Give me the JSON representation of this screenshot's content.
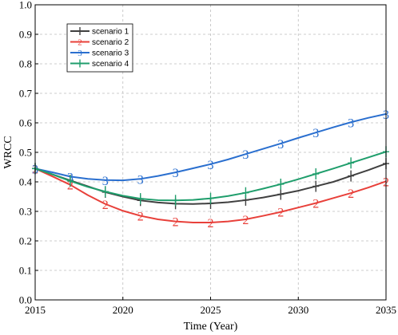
{
  "chart_data": {
    "type": "line",
    "title": "",
    "xlabel": "Time (Year)",
    "ylabel": "WRCC",
    "xlim": [
      2015,
      2035
    ],
    "ylim": [
      0,
      1.0
    ],
    "x_ticks": [
      2015,
      2020,
      2025,
      2030,
      2035
    ],
    "x_tick_labels": [
      "2015",
      "2020",
      "2025",
      "2030",
      "2035"
    ],
    "y_ticks": [
      0,
      0.1,
      0.2,
      0.3,
      0.4,
      0.5,
      0.6,
      0.7,
      0.8,
      0.9,
      1.0
    ],
    "y_tick_labels": [
      "0.0",
      "0.1",
      "0.2",
      "0.3",
      "0.4",
      "0.5",
      "0.6",
      "0.7",
      "0.8",
      "0.9",
      "1.0"
    ],
    "grid": true,
    "legend_position": "top-left",
    "x": [
      2015,
      2016,
      2017,
      2018,
      2019,
      2020,
      2021,
      2022,
      2023,
      2024,
      2025,
      2026,
      2027,
      2028,
      2029,
      2030,
      2031,
      2032,
      2033,
      2034,
      2035
    ],
    "series": [
      {
        "name": "scenario 1",
        "color": "#404040",
        "marker": "plus",
        "values": [
          0.445,
          0.425,
          0.405,
          0.385,
          0.365,
          0.35,
          0.337,
          0.33,
          0.326,
          0.325,
          0.327,
          0.331,
          0.338,
          0.347,
          0.358,
          0.37,
          0.385,
          0.4,
          0.42,
          0.44,
          0.462
        ]
      },
      {
        "name": "scenario 2",
        "color": "#e8403a",
        "marker": "2",
        "values": [
          0.445,
          0.418,
          0.39,
          0.355,
          0.325,
          0.302,
          0.285,
          0.273,
          0.266,
          0.262,
          0.262,
          0.266,
          0.273,
          0.285,
          0.298,
          0.313,
          0.328,
          0.345,
          0.362,
          0.381,
          0.402
        ]
      },
      {
        "name": "scenario 3",
        "color": "#2a6fcf",
        "marker": "3",
        "values": [
          0.445,
          0.432,
          0.418,
          0.41,
          0.406,
          0.405,
          0.41,
          0.42,
          0.432,
          0.446,
          0.46,
          0.476,
          0.494,
          0.512,
          0.53,
          0.549,
          0.567,
          0.585,
          0.602,
          0.617,
          0.63
        ]
      },
      {
        "name": "scenario 4",
        "color": "#1f9e6c",
        "marker": "plus",
        "values": [
          0.445,
          0.425,
          0.403,
          0.383,
          0.367,
          0.353,
          0.343,
          0.338,
          0.337,
          0.339,
          0.344,
          0.352,
          0.363,
          0.377,
          0.392,
          0.409,
          0.427,
          0.445,
          0.464,
          0.483,
          0.502
        ]
      }
    ]
  }
}
